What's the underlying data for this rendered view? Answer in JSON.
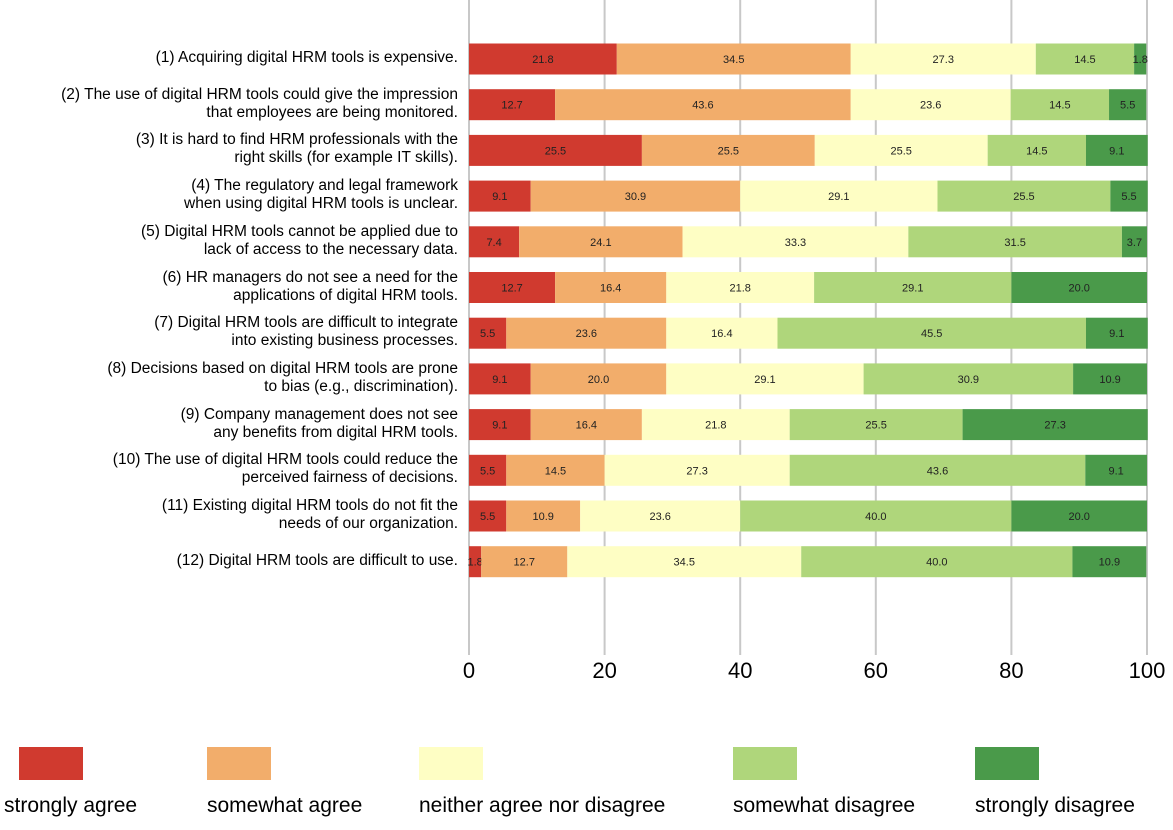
{
  "chart_data": {
    "type": "bar",
    "orientation": "horizontal",
    "stacked": true,
    "categories": [
      "(1) Acquiring digital HRM tools is expensive.",
      "(2) The use of digital HRM tools could give the impression\nthat employees are being monitored.",
      "(3) It is hard to find HRM professionals with the\nright skills (for example IT skills).",
      "(4) The regulatory and legal framework\nwhen using digital HRM tools is unclear.",
      "(5) Digital HRM tools cannot be applied due to\nlack of access to the necessary data.",
      "(6) HR managers do not see a need for the\napplications of digital HRM tools.",
      "(7) Digital HRM tools are difficult to integrate\ninto existing business processes.",
      "(8) Decisions based on digital HRM tools are prone\nto bias (e.g., discrimination).",
      "(9) Company management does not see\nany benefits from digital HRM tools.",
      "(10) The use of digital HRM tools could reduce the\nperceived fairness of decisions.",
      "(11) Existing digital HRM tools do not fit the\nneeds of our organization.",
      "(12) Digital HRM tools are difficult to use."
    ],
    "series": [
      {
        "name": "strongly agree",
        "color": "#d03a2f",
        "values": [
          21.8,
          12.7,
          25.5,
          9.1,
          7.4,
          12.7,
          5.5,
          9.1,
          9.1,
          5.5,
          5.5,
          1.8
        ]
      },
      {
        "name": "somewhat agree",
        "color": "#f2ad6b",
        "values": [
          34.5,
          43.6,
          25.5,
          30.9,
          24.1,
          16.4,
          23.6,
          20.0,
          16.4,
          14.5,
          10.9,
          12.7
        ]
      },
      {
        "name": "neither agree nor disagree",
        "color": "#fefec4",
        "values": [
          27.3,
          23.6,
          25.5,
          29.1,
          33.3,
          21.8,
          16.4,
          29.1,
          21.8,
          27.3,
          23.6,
          34.5
        ]
      },
      {
        "name": "somewhat disagree",
        "color": "#afd67b",
        "values": [
          14.5,
          14.5,
          14.5,
          25.5,
          31.5,
          29.1,
          45.5,
          30.9,
          25.5,
          43.6,
          40.0,
          40.0
        ]
      },
      {
        "name": "strongly disagree",
        "color": "#4a9a4a",
        "values": [
          1.8,
          5.5,
          9.1,
          5.5,
          3.7,
          20.0,
          9.1,
          10.9,
          27.3,
          9.1,
          20.0,
          10.9
        ]
      }
    ],
    "labels": [
      [
        "21.8",
        "34.5",
        "27.3",
        "14.5",
        "1.8"
      ],
      [
        "12.7",
        "43.6",
        "23.6",
        "14.5",
        "5.5"
      ],
      [
        "25.5",
        "25.5",
        "25.5",
        "14.5",
        "9.1"
      ],
      [
        "9.1",
        "30.9",
        "29.1",
        "25.5",
        "5.5"
      ],
      [
        "7.4",
        "24.1",
        "33.3",
        "31.5",
        "3.7"
      ],
      [
        "12.7",
        "16.4",
        "21.8",
        "29.1",
        "20.0"
      ],
      [
        "5.5",
        "23.6",
        "16.4",
        "45.5",
        "9.1"
      ],
      [
        "9.1",
        "20.0",
        "29.1",
        "30.9",
        "10.9"
      ],
      [
        "9.1",
        "16.4",
        "21.8",
        "25.5",
        "27.3"
      ],
      [
        "5.5",
        "14.5",
        "27.3",
        "43.6",
        "9.1"
      ],
      [
        "5.5",
        "10.9",
        "23.6",
        "40.0",
        "20.0"
      ],
      [
        "1.8",
        "12.7",
        "34.5",
        "40.0",
        "10.9"
      ]
    ],
    "x_ticks": [
      "0",
      "20",
      "40",
      "60",
      "80",
      "100"
    ],
    "xlim": [
      0,
      100
    ],
    "grid": true,
    "legend_position": "bottom"
  }
}
